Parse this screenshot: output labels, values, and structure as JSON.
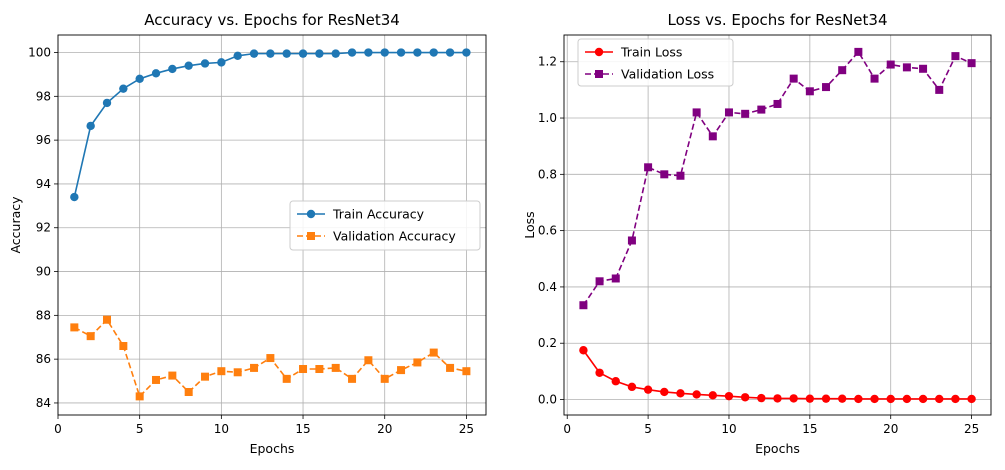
{
  "chart_data": [
    {
      "type": "line",
      "title": "Accuracy vs. Epochs for ResNet34",
      "xlabel": "Epochs",
      "ylabel": "Accuracy",
      "xlim": [
        0,
        26.2
      ],
      "ylim": [
        83.45,
        100.8
      ],
      "xticks": [
        0,
        5,
        10,
        15,
        20,
        25
      ],
      "yticks": [
        84,
        86,
        88,
        90,
        92,
        94,
        96,
        98,
        100
      ],
      "grid": true,
      "legend_position": "center-right",
      "x": [
        1,
        2,
        3,
        4,
        5,
        6,
        7,
        8,
        9,
        10,
        11,
        12,
        13,
        14,
        15,
        16,
        17,
        18,
        19,
        20,
        21,
        22,
        23,
        24,
        25
      ],
      "series": [
        {
          "name": "Train Accuracy",
          "color": "#1f77b4",
          "linestyle": "solid",
          "marker": "circle",
          "values": [
            93.4,
            96.65,
            97.7,
            98.35,
            98.8,
            99.05,
            99.25,
            99.4,
            99.5,
            99.55,
            99.85,
            99.95,
            99.95,
            99.95,
            99.95,
            99.95,
            99.95,
            100.0,
            100.0,
            100.0,
            100.0,
            100.0,
            100.0,
            100.0,
            100.0
          ]
        },
        {
          "name": "Validation Accuracy",
          "color": "#ff7f0e",
          "linestyle": "dashed",
          "marker": "square",
          "values": [
            87.45,
            87.05,
            87.8,
            86.6,
            84.3,
            85.05,
            85.25,
            84.5,
            85.2,
            85.45,
            85.4,
            85.6,
            86.05,
            85.1,
            85.55,
            85.55,
            85.6,
            85.1,
            85.95,
            85.1,
            85.5,
            85.85,
            86.3,
            85.6,
            85.45
          ]
        }
      ]
    },
    {
      "type": "line",
      "title": "Loss vs. Epochs for ResNet34",
      "xlabel": "Epochs",
      "ylabel": "Loss",
      "xlim": [
        -0.2,
        26.2
      ],
      "ylim": [
        -0.055,
        1.295
      ],
      "xticks": [
        0,
        5,
        10,
        15,
        20,
        25
      ],
      "yticks": [
        0.0,
        0.2,
        0.4,
        0.6,
        0.8,
        1.0,
        1.2
      ],
      "grid": true,
      "legend_position": "top-left",
      "x": [
        1,
        2,
        3,
        4,
        5,
        6,
        7,
        8,
        9,
        10,
        11,
        12,
        13,
        14,
        15,
        16,
        17,
        18,
        19,
        20,
        21,
        22,
        23,
        24,
        25
      ],
      "series": [
        {
          "name": "Train Loss",
          "color": "#ff0000",
          "linestyle": "solid",
          "marker": "circle",
          "values": [
            0.175,
            0.095,
            0.065,
            0.045,
            0.035,
            0.027,
            0.022,
            0.018,
            0.015,
            0.012,
            0.008,
            0.005,
            0.004,
            0.004,
            0.003,
            0.003,
            0.003,
            0.002,
            0.002,
            0.002,
            0.002,
            0.002,
            0.002,
            0.002,
            0.002
          ]
        },
        {
          "name": "Validation Loss",
          "color": "#800080",
          "linestyle": "dashed",
          "marker": "square",
          "values": [
            0.335,
            0.42,
            0.43,
            0.565,
            0.825,
            0.8,
            0.795,
            1.02,
            0.935,
            1.02,
            1.015,
            1.03,
            1.05,
            1.14,
            1.095,
            1.11,
            1.17,
            1.235,
            1.14,
            1.19,
            1.18,
            1.175,
            1.1,
            1.22,
            1.195
          ]
        }
      ]
    }
  ]
}
